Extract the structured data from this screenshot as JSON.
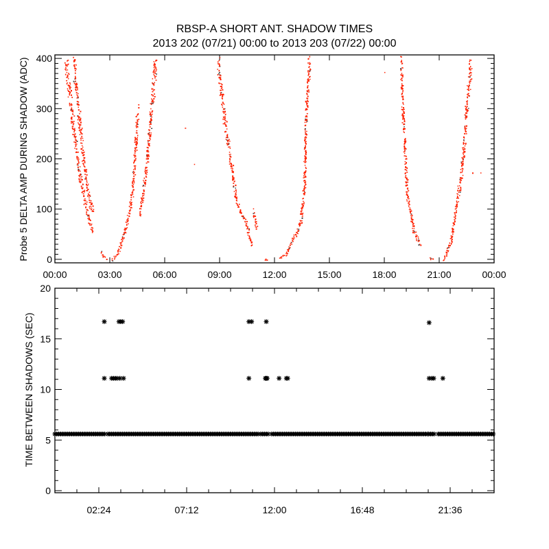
{
  "title": "RBSP-A SHORT ANT. SHADOW TIMES",
  "subtitle": "2013 202 (07/21) 00:00 to 2013 203 (07/22) 00:00",
  "colors": {
    "points": "#ff2000",
    "dark_points": "#444444",
    "axis": "#000000"
  },
  "chart_data": [
    {
      "type": "scatter",
      "ylabel": "Probe 5 DELTA AMP DURING SHADOW (ADC)",
      "xlabel": "",
      "xlim_hours": [
        0,
        24
      ],
      "ylim": [
        -7,
        407
      ],
      "xticks": [
        {
          "h": 0,
          "label": "00:00"
        },
        {
          "h": 3,
          "label": "03:00"
        },
        {
          "h": 6,
          "label": "06:00"
        },
        {
          "h": 9,
          "label": "09:00"
        },
        {
          "h": 12,
          "label": "12:00"
        },
        {
          "h": 15,
          "label": "15:00"
        },
        {
          "h": 18,
          "label": "18:00"
        },
        {
          "h": 21,
          "label": "21:00"
        },
        {
          "h": 24,
          "label": "00:00"
        }
      ],
      "yticks": [
        {
          "v": 0,
          "label": "0"
        },
        {
          "v": 100,
          "label": "100"
        },
        {
          "v": 200,
          "label": "200"
        },
        {
          "v": 300,
          "label": "300"
        },
        {
          "v": 400,
          "label": "400"
        }
      ],
      "strands": [
        [
          [
            0.55,
            400
          ],
          [
            0.8,
            330
          ],
          [
            1.0,
            260
          ],
          [
            1.3,
            180
          ],
          [
            1.6,
            120
          ],
          [
            1.9,
            70
          ],
          [
            2.1,
            55
          ]
        ],
        [
          [
            1.0,
            400
          ],
          [
            1.2,
            320
          ],
          [
            1.4,
            250
          ],
          [
            1.6,
            180
          ],
          [
            1.85,
            120
          ],
          [
            2.1,
            90
          ]
        ],
        [
          [
            2.5,
            15
          ],
          [
            2.6,
            8
          ],
          [
            2.8,
            2
          ]
        ],
        [
          [
            3.1,
            0
          ],
          [
            3.4,
            10
          ],
          [
            3.7,
            45
          ],
          [
            4.0,
            85
          ],
          [
            4.2,
            130
          ],
          [
            4.35,
            200
          ],
          [
            4.5,
            290
          ]
        ],
        [
          [
            4.6,
            90
          ],
          [
            4.8,
            130
          ],
          [
            5.0,
            190
          ],
          [
            5.2,
            280
          ],
          [
            5.5,
            400
          ]
        ],
        [
          [
            8.9,
            400
          ],
          [
            9.1,
            330
          ],
          [
            9.3,
            270
          ],
          [
            9.6,
            192
          ],
          [
            9.95,
            110
          ],
          [
            10.4,
            75
          ],
          [
            10.75,
            29
          ]
        ],
        [
          [
            10.85,
            95
          ],
          [
            11.0,
            60
          ]
        ],
        [
          [
            11.5,
            0
          ],
          [
            11.6,
            0
          ]
        ],
        [
          [
            12.3,
            2
          ],
          [
            12.6,
            10
          ],
          [
            12.9,
            34
          ],
          [
            13.4,
            70
          ],
          [
            13.6,
            138
          ],
          [
            13.7,
            284
          ],
          [
            13.9,
            400
          ]
        ],
        [
          [
            18.9,
            400
          ],
          [
            19.0,
            284
          ],
          [
            19.25,
            124
          ],
          [
            19.6,
            56
          ],
          [
            19.95,
            29
          ]
        ],
        [
          [
            20.45,
            2
          ],
          [
            20.65,
            2
          ]
        ],
        [
          [
            21.25,
            0
          ],
          [
            21.6,
            34
          ],
          [
            21.9,
            102
          ],
          [
            22.2,
            170
          ],
          [
            22.4,
            261
          ],
          [
            22.6,
            352
          ],
          [
            22.75,
            400
          ]
        ]
      ],
      "outliers": [
        [
          7.1,
          262
        ],
        [
          7.6,
          190
        ],
        [
          18.0,
          373
        ],
        [
          22.8,
          173
        ],
        [
          23.25,
          173
        ]
      ]
    },
    {
      "type": "scatter",
      "ylabel": "TIME BETWEEN SHADOWS (SEC)",
      "xlabel": "",
      "xlim_hours": [
        0,
        24
      ],
      "ylim": [
        0,
        20
      ],
      "xticks": [
        {
          "h": 2.4,
          "label": "02:24"
        },
        {
          "h": 7.2,
          "label": "07:12"
        },
        {
          "h": 12,
          "label": "12:00"
        },
        {
          "h": 16.8,
          "label": "16:48"
        },
        {
          "h": 21.6,
          "label": "21:36"
        }
      ],
      "yticks": [
        {
          "v": 0,
          "label": "0"
        },
        {
          "v": 5,
          "label": "5"
        },
        {
          "v": 10,
          "label": "10"
        },
        {
          "v": 15,
          "label": "15"
        },
        {
          "v": 20,
          "label": "20"
        }
      ],
      "baseline_value": 5.6,
      "baseline_ranges": [
        [
          0,
          2.25
        ],
        [
          2.32,
          2.75
        ],
        [
          2.9,
          11.15
        ],
        [
          11.25,
          11.7
        ],
        [
          11.85,
          20.35
        ],
        [
          20.42,
          20.8
        ],
        [
          20.95,
          24
        ]
      ],
      "points": [
        [
          2.7,
          16.7
        ],
        [
          3.5,
          16.7
        ],
        [
          3.6,
          16.7
        ],
        [
          3.7,
          16.7
        ],
        [
          10.6,
          16.7
        ],
        [
          10.75,
          16.7
        ],
        [
          11.55,
          16.7
        ],
        [
          2.7,
          11.1
        ],
        [
          3.1,
          11.1
        ],
        [
          3.2,
          11.1
        ],
        [
          3.3,
          11.1
        ],
        [
          3.4,
          11.1
        ],
        [
          3.55,
          11.1
        ],
        [
          3.75,
          11.1
        ],
        [
          10.6,
          11.1
        ],
        [
          11.5,
          11.1
        ],
        [
          11.55,
          11.1
        ],
        [
          11.6,
          11.1
        ],
        [
          12.25,
          11.1
        ],
        [
          12.65,
          11.1
        ],
        [
          12.72,
          11.1
        ],
        [
          20.45,
          16.6
        ],
        [
          20.45,
          11.1
        ],
        [
          20.6,
          11.1
        ],
        [
          20.7,
          11.1
        ],
        [
          21.2,
          11.1
        ]
      ]
    }
  ]
}
